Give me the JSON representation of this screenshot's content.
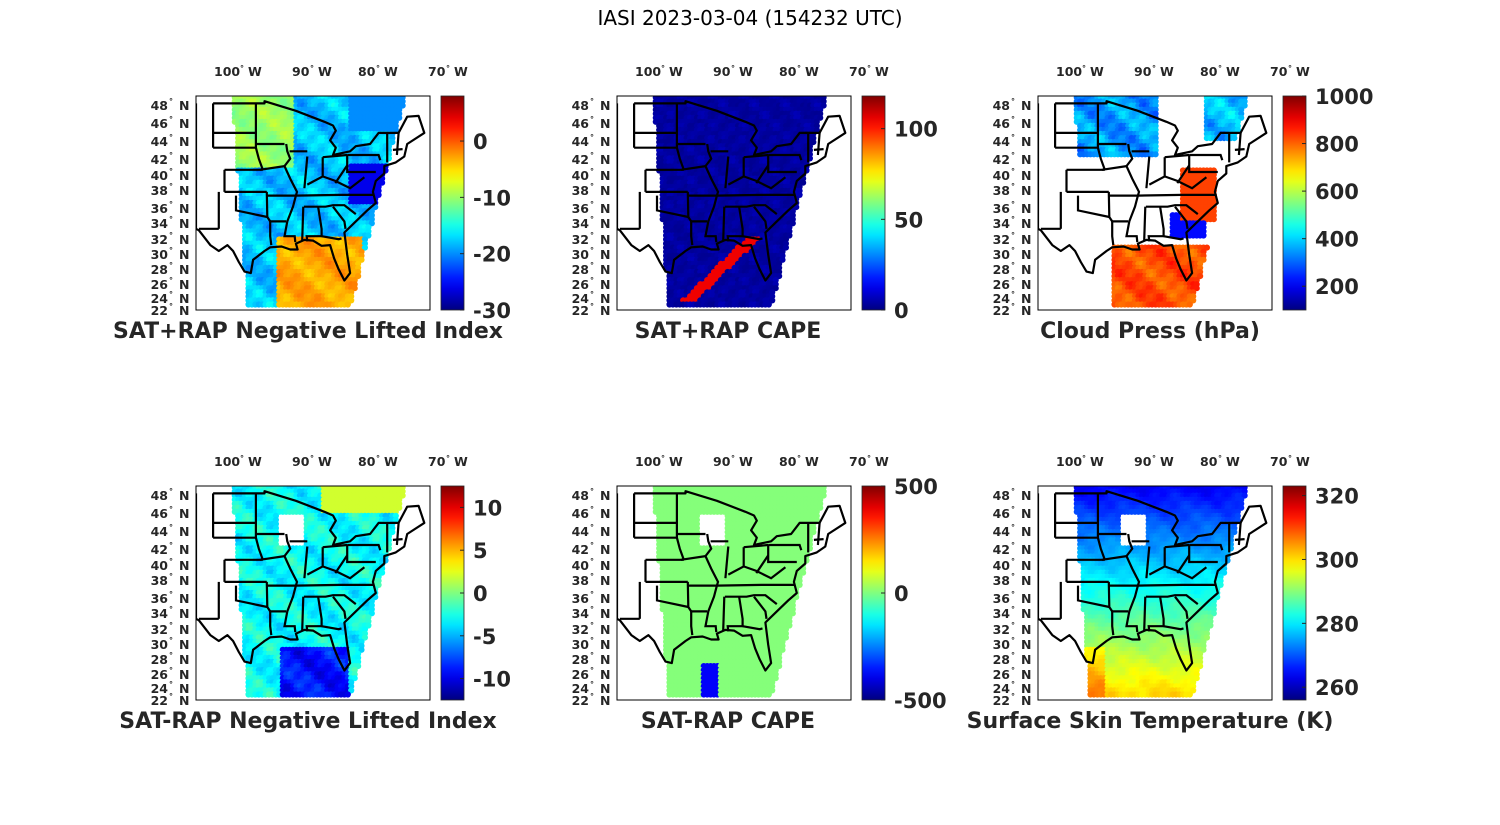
{
  "figure": {
    "title": "IASI 2023-03-04 (154232 UTC)"
  },
  "chart_data": [
    {
      "type": "heatmap",
      "title": "SAT+RAP Negative Lifted Index",
      "lon_ticks": [
        "100",
        "90",
        "80",
        "70"
      ],
      "lon_suffix": "W",
      "lat_ticks": [
        "48",
        "46",
        "44",
        "42",
        "40",
        "38",
        "36",
        "34",
        "32",
        "30",
        "28",
        "26",
        "24",
        "22"
      ],
      "lat_suffix": "N",
      "colorbar": {
        "colormap": "jet",
        "range": [
          -30,
          8
        ],
        "ticks": [
          "0",
          "-10",
          "-20",
          "-30"
        ],
        "tick_values": [
          0,
          -10,
          -20,
          -30
        ]
      },
      "field": "mostly -25 to -15 (blue/cyan) over land, -5 to 0 (yellow/orange) over Gulf of Mexico and SE Atlantic"
    },
    {
      "type": "heatmap",
      "title": "SAT+RAP CAPE",
      "lon_ticks": [
        "100",
        "90",
        "80",
        "70"
      ],
      "lon_suffix": "W",
      "lat_ticks": [
        "48",
        "46",
        "44",
        "42",
        "40",
        "38",
        "36",
        "34",
        "32",
        "30",
        "28",
        "26",
        "24",
        "22"
      ],
      "lat_suffix": "N",
      "colorbar": {
        "colormap": "jet",
        "range": [
          0,
          118
        ],
        "ticks": [
          "100",
          "50",
          "0"
        ],
        "tick_values": [
          100,
          50,
          0
        ]
      },
      "field": "near 0 everywhere, streaks of ~100 along Gulf/Florida coast"
    },
    {
      "type": "heatmap",
      "title": "Cloud Press (hPa)",
      "lon_ticks": [
        "100",
        "90",
        "80",
        "70"
      ],
      "lon_suffix": "W",
      "lat_ticks": [
        "48",
        "46",
        "44",
        "42",
        "40",
        "38",
        "36",
        "34",
        "32",
        "30",
        "28",
        "26",
        "24",
        "22"
      ],
      "lat_suffix": "N",
      "colorbar": {
        "colormap": "jet",
        "range": [
          100,
          1000
        ],
        "ticks": [
          "1000",
          "800",
          "600",
          "400",
          "200"
        ],
        "tick_values": [
          1000,
          800,
          600,
          400,
          200
        ]
      },
      "field": "300-450 hPa in north, ~800-900 hPa over Gulf and Atlantic, clear elsewhere"
    },
    {
      "type": "heatmap",
      "title": "SAT-RAP Negative Lifted Index",
      "lon_ticks": [
        "100",
        "90",
        "80",
        "70"
      ],
      "lon_suffix": "W",
      "lat_ticks": [
        "48",
        "46",
        "44",
        "42",
        "40",
        "38",
        "36",
        "34",
        "32",
        "30",
        "28",
        "26",
        "24",
        "22"
      ],
      "lat_suffix": "N",
      "colorbar": {
        "colormap": "jet",
        "range": [
          -12.5,
          12.5
        ],
        "ticks": [
          "10",
          "5",
          "0",
          "-5",
          "-10"
        ],
        "tick_values": [
          10,
          5,
          0,
          -5,
          -10
        ]
      },
      "field": "mostly -5 to 0, -10 in southern Gulf, +3 in north"
    },
    {
      "type": "heatmap",
      "title": "SAT-RAP CAPE",
      "lon_ticks": [
        "100",
        "90",
        "80",
        "70"
      ],
      "lon_suffix": "W",
      "lat_ticks": [
        "48",
        "46",
        "44",
        "42",
        "40",
        "38",
        "36",
        "34",
        "32",
        "30",
        "28",
        "26",
        "24",
        "22"
      ],
      "lat_suffix": "N",
      "colorbar": {
        "colormap": "jet",
        "range": [
          -500,
          500
        ],
        "ticks": [
          "500",
          "0",
          "-500"
        ],
        "tick_values": [
          500,
          0,
          -500
        ]
      },
      "field": "~0 everywhere, down to -400 in Gulf"
    },
    {
      "type": "heatmap",
      "title": "Surface Skin Temperature (K)",
      "lon_ticks": [
        "100",
        "90",
        "80",
        "70"
      ],
      "lon_suffix": "W",
      "lat_ticks": [
        "48",
        "46",
        "44",
        "42",
        "40",
        "38",
        "36",
        "34",
        "32",
        "30",
        "28",
        "26",
        "24",
        "22"
      ],
      "lat_suffix": "N",
      "colorbar": {
        "colormap": "jet",
        "range": [
          256,
          323
        ],
        "ticks": [
          "320",
          "300",
          "280",
          "260"
        ],
        "tick_values": [
          320,
          300,
          280,
          260
        ]
      },
      "field": "265 K in north grading to ~300-305 K in south"
    }
  ]
}
